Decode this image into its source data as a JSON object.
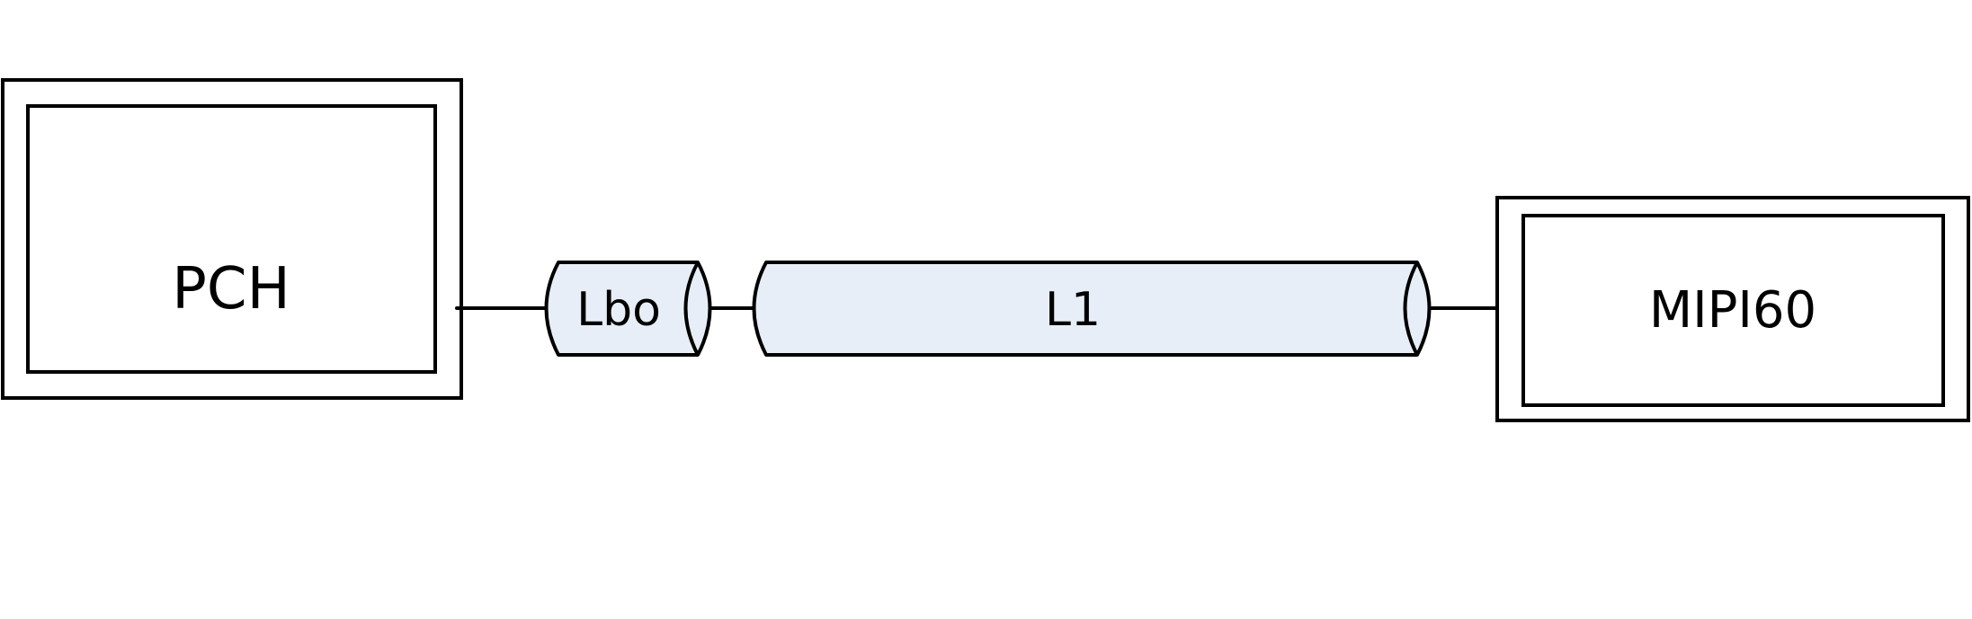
{
  "colors": {
    "stroke": "#000000",
    "cable_fill": "#e8eef7",
    "box_fill": "#ffffff",
    "background": "#ffffff"
  },
  "blocks": {
    "source": {
      "label": "PCH"
    },
    "sink": {
      "label": "MIPI60"
    }
  },
  "segments": [
    {
      "label": "Lbo"
    },
    {
      "label": "L1"
    }
  ]
}
